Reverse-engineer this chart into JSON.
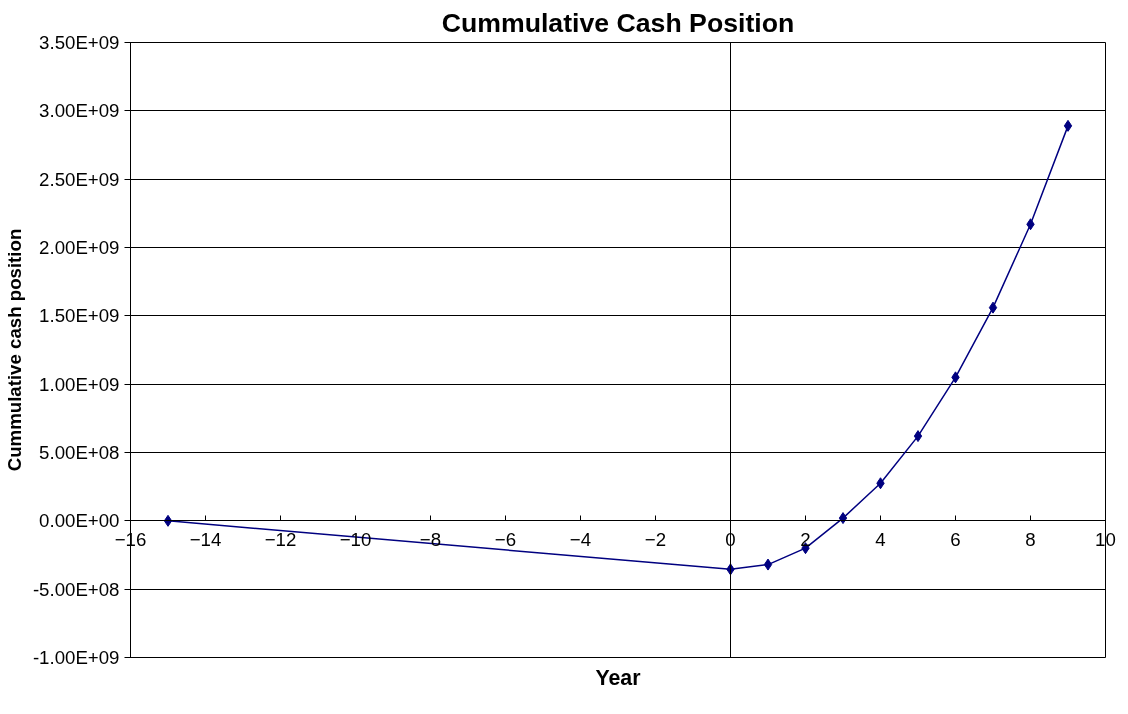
{
  "chart_data": {
    "type": "line",
    "title": "Cummulative Cash Position",
    "xlabel": "Year",
    "ylabel": "Cummulative cash position",
    "x": [
      -15,
      0,
      1,
      2,
      3,
      4,
      5,
      6,
      7,
      8,
      9
    ],
    "series": [
      {
        "color": "#000080",
        "values": [
          0,
          -355000000.0,
          -320000000.0,
          -200000000.0,
          20000000.0,
          275000000.0,
          620000000.0,
          1050000000.0,
          1560000000.0,
          2170000000.0,
          2890000000.0
        ]
      }
    ],
    "xlim": [
      -16,
      10
    ],
    "xticks": [
      -16,
      -14,
      -12,
      -10,
      -8,
      -6,
      -4,
      -2,
      0,
      2,
      4,
      6,
      8,
      10
    ],
    "ylim": [
      -1000000000.0,
      3500000000.0
    ],
    "yticks": [
      {
        "value": -1000000000.0,
        "label": "-1.00E+09"
      },
      {
        "value": -500000000.0,
        "label": "-5.00E+08"
      },
      {
        "value": 0,
        "label": "0.00E+00"
      },
      {
        "value": 500000000.0,
        "label": "5.00E+08"
      },
      {
        "value": 1000000000.0,
        "label": "1.00E+09"
      },
      {
        "value": 1500000000.0,
        "label": "1.50E+09"
      },
      {
        "value": 2000000000.0,
        "label": "2.00E+09"
      },
      {
        "value": 2500000000.0,
        "label": "2.50E+09"
      },
      {
        "value": 3000000000.0,
        "label": "3.00E+09"
      },
      {
        "value": 3500000000.0,
        "label": "3.50E+09"
      }
    ],
    "ref_lines": [
      {
        "axis": "x",
        "value": 0,
        "color": "#000000"
      }
    ],
    "grid": "y",
    "marker": "diamond",
    "line_style": "solid"
  }
}
